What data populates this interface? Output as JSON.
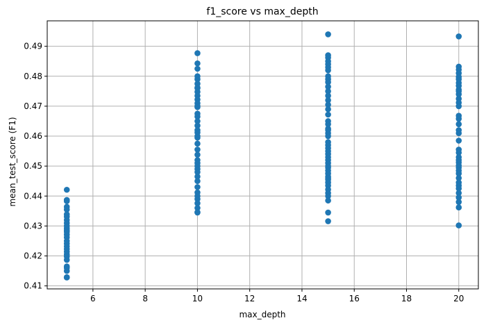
{
  "chart_data": {
    "type": "scatter",
    "title": "f1_score vs max_depth",
    "xlabel": "max_depth",
    "ylabel": "mean_test_score (F1)",
    "xlim": [
      4.25,
      20.75
    ],
    "ylim": [
      0.409,
      0.4985
    ],
    "xticks": [
      6,
      8,
      10,
      12,
      14,
      16,
      18,
      20
    ],
    "yticks": [
      0.41,
      0.42,
      0.43,
      0.44,
      0.45,
      0.46,
      0.47,
      0.48,
      0.49
    ],
    "grid": true,
    "color": "#1f77b4",
    "series": [
      {
        "x": [
          5,
          5,
          5,
          5,
          5,
          5,
          5,
          5,
          5,
          5,
          5,
          5,
          5,
          5,
          5,
          5,
          5,
          5,
          5,
          5,
          5,
          5,
          5,
          5,
          5,
          5,
          5,
          5
        ],
        "y": [
          0.4421,
          0.4387,
          0.4383,
          0.4364,
          0.4355,
          0.4339,
          0.4331,
          0.432,
          0.431,
          0.43,
          0.4292,
          0.4285,
          0.428,
          0.4271,
          0.4262,
          0.425,
          0.4241,
          0.4232,
          0.4223,
          0.4214,
          0.4205,
          0.4198,
          0.4187,
          0.4165,
          0.416,
          0.415,
          0.4129,
          0.4128
        ]
      },
      {
        "x": [
          10,
          10,
          10,
          10,
          10,
          10,
          10,
          10,
          10,
          10,
          10,
          10,
          10,
          10,
          10,
          10,
          10,
          10,
          10,
          10,
          10,
          10,
          10,
          10,
          10,
          10,
          10,
          10,
          10,
          10,
          10,
          10,
          10,
          10,
          10,
          10,
          10,
          10,
          10,
          10
        ],
        "y": [
          0.4877,
          0.4843,
          0.4825,
          0.48,
          0.479,
          0.4775,
          0.4762,
          0.4748,
          0.4735,
          0.4722,
          0.471,
          0.4697,
          0.4675,
          0.4665,
          0.465,
          0.4635,
          0.462,
          0.4612,
          0.4595,
          0.4575,
          0.4555,
          0.4538,
          0.452,
          0.451,
          0.45,
          0.449,
          0.448,
          0.4465,
          0.445,
          0.443,
          0.4412,
          0.44,
          0.439,
          0.4376,
          0.436,
          0.4346,
          0.4345,
          0.47,
          0.476,
          0.46
        ]
      },
      {
        "x": [
          15,
          15,
          15,
          15,
          15,
          15,
          15,
          15,
          15,
          15,
          15,
          15,
          15,
          15,
          15,
          15,
          15,
          15,
          15,
          15,
          15,
          15,
          15,
          15,
          15,
          15,
          15,
          15,
          15,
          15,
          15,
          15,
          15,
          15,
          15,
          15,
          15,
          15,
          15,
          15,
          15,
          15,
          15,
          15,
          15,
          15
        ],
        "y": [
          0.494,
          0.487,
          0.4862,
          0.485,
          0.484,
          0.483,
          0.482,
          0.48,
          0.479,
          0.478,
          0.4765,
          0.475,
          0.4735,
          0.472,
          0.4705,
          0.469,
          0.4672,
          0.465,
          0.464,
          0.4625,
          0.461,
          0.46,
          0.458,
          0.457,
          0.456,
          0.455,
          0.454,
          0.453,
          0.452,
          0.451,
          0.4495,
          0.4485,
          0.4475,
          0.4465,
          0.4455,
          0.4445,
          0.4435,
          0.4422,
          0.441,
          0.44,
          0.4385,
          0.4345,
          0.4316,
          0.45,
          0.446,
          0.462
        ]
      },
      {
        "x": [
          20,
          20,
          20,
          20,
          20,
          20,
          20,
          20,
          20,
          20,
          20,
          20,
          20,
          20,
          20,
          20,
          20,
          20,
          20,
          20,
          20,
          20,
          20,
          20,
          20,
          20,
          20,
          20,
          20,
          20,
          20,
          20,
          20,
          20,
          20,
          20,
          20,
          20
        ],
        "y": [
          0.4933,
          0.4832,
          0.4822,
          0.481,
          0.4798,
          0.4778,
          0.4768,
          0.4755,
          0.474,
          0.4725,
          0.4712,
          0.47,
          0.4668,
          0.4658,
          0.462,
          0.461,
          0.4585,
          0.4555,
          0.4545,
          0.453,
          0.4512,
          0.4502,
          0.4495,
          0.4485,
          0.4475,
          0.4445,
          0.4435,
          0.4425,
          0.441,
          0.4395,
          0.438,
          0.4362,
          0.4302,
          0.464,
          0.452,
          0.446,
          0.475,
          0.479
        ]
      }
    ]
  }
}
